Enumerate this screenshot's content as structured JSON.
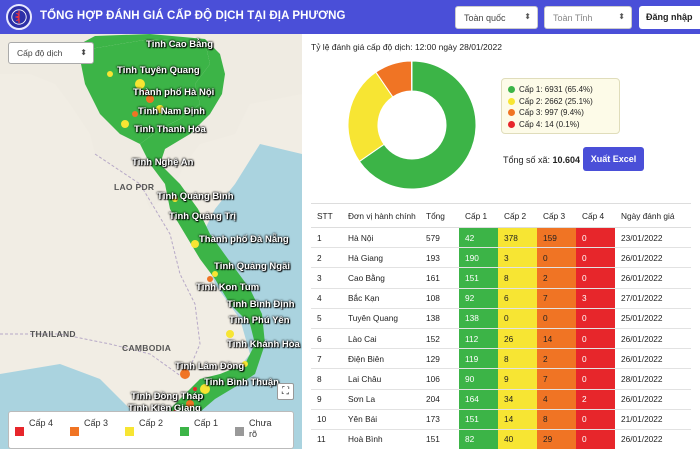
{
  "header": {
    "title": "TỔNG HỢP ĐÁNH GIÁ CẤP ĐỘ DỊCH TẠI ĐỊA PHƯƠNG",
    "scope_select": "Toàn quốc",
    "province_select": "Toàn Tỉnh",
    "login_label": "Đăng nhập"
  },
  "map": {
    "level_select": "Cấp độ dịch",
    "labels": [
      "Tỉnh Cao Bằng",
      "Tỉnh Tuyên Quang",
      "Thành phố Hà Nội",
      "Tỉnh Nam Định",
      "Tỉnh Thanh Hóa",
      "Tỉnh Nghệ An",
      "Tỉnh Quảng Bình",
      "Tỉnh Quảng Trị",
      "Thành phố Đà Nẵng",
      "Tỉnh Quảng Ngãi",
      "Tỉnh Kon Tum",
      "Tỉnh Bình Định",
      "Tỉnh Phú Yên",
      "Tỉnh Khánh Hòa",
      "Tỉnh Lâm Đồng",
      "Tỉnh Bình Thuận",
      "Tỉnh Đồng Tháp",
      "Tỉnh Kiên Giang"
    ],
    "countries": [
      "LAO PDR",
      "THAILAND",
      "CAMBODIA"
    ],
    "legend": [
      {
        "label": "Cấp 4",
        "color": "#e7262b"
      },
      {
        "label": "Cấp 3",
        "color": "#f07424"
      },
      {
        "label": "Cấp 2",
        "color": "#f7e533"
      },
      {
        "label": "Cấp 1",
        "color": "#3cb447"
      },
      {
        "label": "Chưa rõ",
        "color": "#999999"
      }
    ]
  },
  "stats": {
    "title": "Tỷ lệ đánh giá cấp độ dịch: 12:00 ngày 28/01/2022",
    "total_label": "Tổng số xã: ",
    "total_value": "10.604",
    "export_label": "Xuất Excel",
    "legend": [
      {
        "label": "Cấp 1: 6931 (65.4%)",
        "color": "#3cb447"
      },
      {
        "label": "Cấp 2: 2662 (25.1%)",
        "color": "#f7e533"
      },
      {
        "label": "Cấp 3: 997 (9.4%)",
        "color": "#f07424"
      },
      {
        "label": "Cấp 4: 14 (0.1%)",
        "color": "#e7262b"
      }
    ]
  },
  "chart_data": {
    "type": "pie",
    "categories": [
      "Cấp 1",
      "Cấp 2",
      "Cấp 3",
      "Cấp 4"
    ],
    "values": [
      6931,
      2662,
      997,
      14
    ],
    "colors": [
      "#3cb447",
      "#f7e533",
      "#f07424",
      "#e7262b"
    ]
  },
  "table": {
    "headers": [
      "STT",
      "Đơn vị hành chính",
      "Tổng",
      "Cấp 1",
      "Cấp 2",
      "Cấp 3",
      "Cấp 4",
      "Ngày đánh giá"
    ],
    "rows": [
      [
        "1",
        "Hà Nội",
        "579",
        "42",
        "378",
        "159",
        "0",
        "23/01/2022"
      ],
      [
        "2",
        "Hà Giang",
        "193",
        "190",
        "3",
        "0",
        "0",
        "26/01/2022"
      ],
      [
        "3",
        "Cao Bằng",
        "161",
        "151",
        "8",
        "2",
        "0",
        "26/01/2022"
      ],
      [
        "4",
        "Bắc Kạn",
        "108",
        "92",
        "6",
        "7",
        "3",
        "27/01/2022"
      ],
      [
        "5",
        "Tuyên Quang",
        "138",
        "138",
        "0",
        "0",
        "0",
        "25/01/2022"
      ],
      [
        "6",
        "Lào Cai",
        "152",
        "112",
        "26",
        "14",
        "0",
        "26/01/2022"
      ],
      [
        "7",
        "Điện Biên",
        "129",
        "119",
        "8",
        "2",
        "0",
        "26/01/2022"
      ],
      [
        "8",
        "Lai Châu",
        "106",
        "90",
        "9",
        "7",
        "0",
        "28/01/2022"
      ],
      [
        "9",
        "Sơn La",
        "204",
        "164",
        "34",
        "4",
        "2",
        "26/01/2022"
      ],
      [
        "10",
        "Yên Bái",
        "173",
        "151",
        "14",
        "8",
        "0",
        "21/01/2022"
      ],
      [
        "11",
        "Hoà Bình",
        "151",
        "82",
        "40",
        "29",
        "0",
        "26/01/2022"
      ]
    ]
  }
}
